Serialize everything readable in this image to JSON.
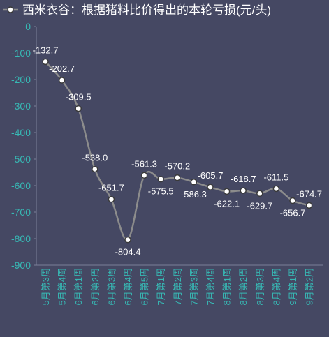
{
  "chart_data": {
    "type": "line",
    "title": "西米衣谷：根据猪料比价得出的本轮亏损(元/头)",
    "categories": [
      "5月第3周",
      "5月第4周",
      "6月第1周",
      "6月第2周",
      "6月第3周",
      "6月第4周",
      "6月第5周",
      "7月第1周",
      "7月第2周",
      "7月第3周",
      "7月第4周",
      "8月第1周",
      "8月第2周",
      "8月第3周",
      "8月第4周",
      "9月第1周",
      "9月第2周"
    ],
    "series": [
      {
        "name": "西米衣谷：根据猪料比价得出的本轮亏损(元/头)",
        "values": [
          -132.7,
          -202.7,
          -309.5,
          -538.0,
          -651.7,
          -804.4,
          -561.3,
          -575.5,
          -570.2,
          -586.3,
          -605.7,
          -622.1,
          -618.7,
          -629.7,
          -611.5,
          -656.7,
          -674.7
        ],
        "labels": [
          "-132.7",
          "-202.7",
          "-309.5",
          "-538.0",
          "-651.7",
          "-804.4",
          "-561.3",
          "-575.5",
          "-570.2",
          "-586.3",
          "-605.7",
          "-622.1",
          "-618.7",
          "-629.7",
          "-611.5",
          "-656.7",
          "-674.7"
        ]
      }
    ],
    "y_ticks": [
      "0",
      "-100",
      "-200",
      "-300",
      "-400",
      "-500",
      "-600",
      "-700",
      "-800",
      "-900"
    ],
    "ylim": [
      -900,
      0
    ],
    "xlabel": "",
    "ylabel": "",
    "grid": false,
    "legend_position": "top-left",
    "colors": {
      "background": "#454863",
      "line": "#8c8c8c",
      "marker_fill": "#ffffff",
      "marker_stroke": "#3a3a3a",
      "axis_text": "#37b8b4",
      "label_text": "#ffffff",
      "axis_line": "#7b7f99"
    }
  }
}
